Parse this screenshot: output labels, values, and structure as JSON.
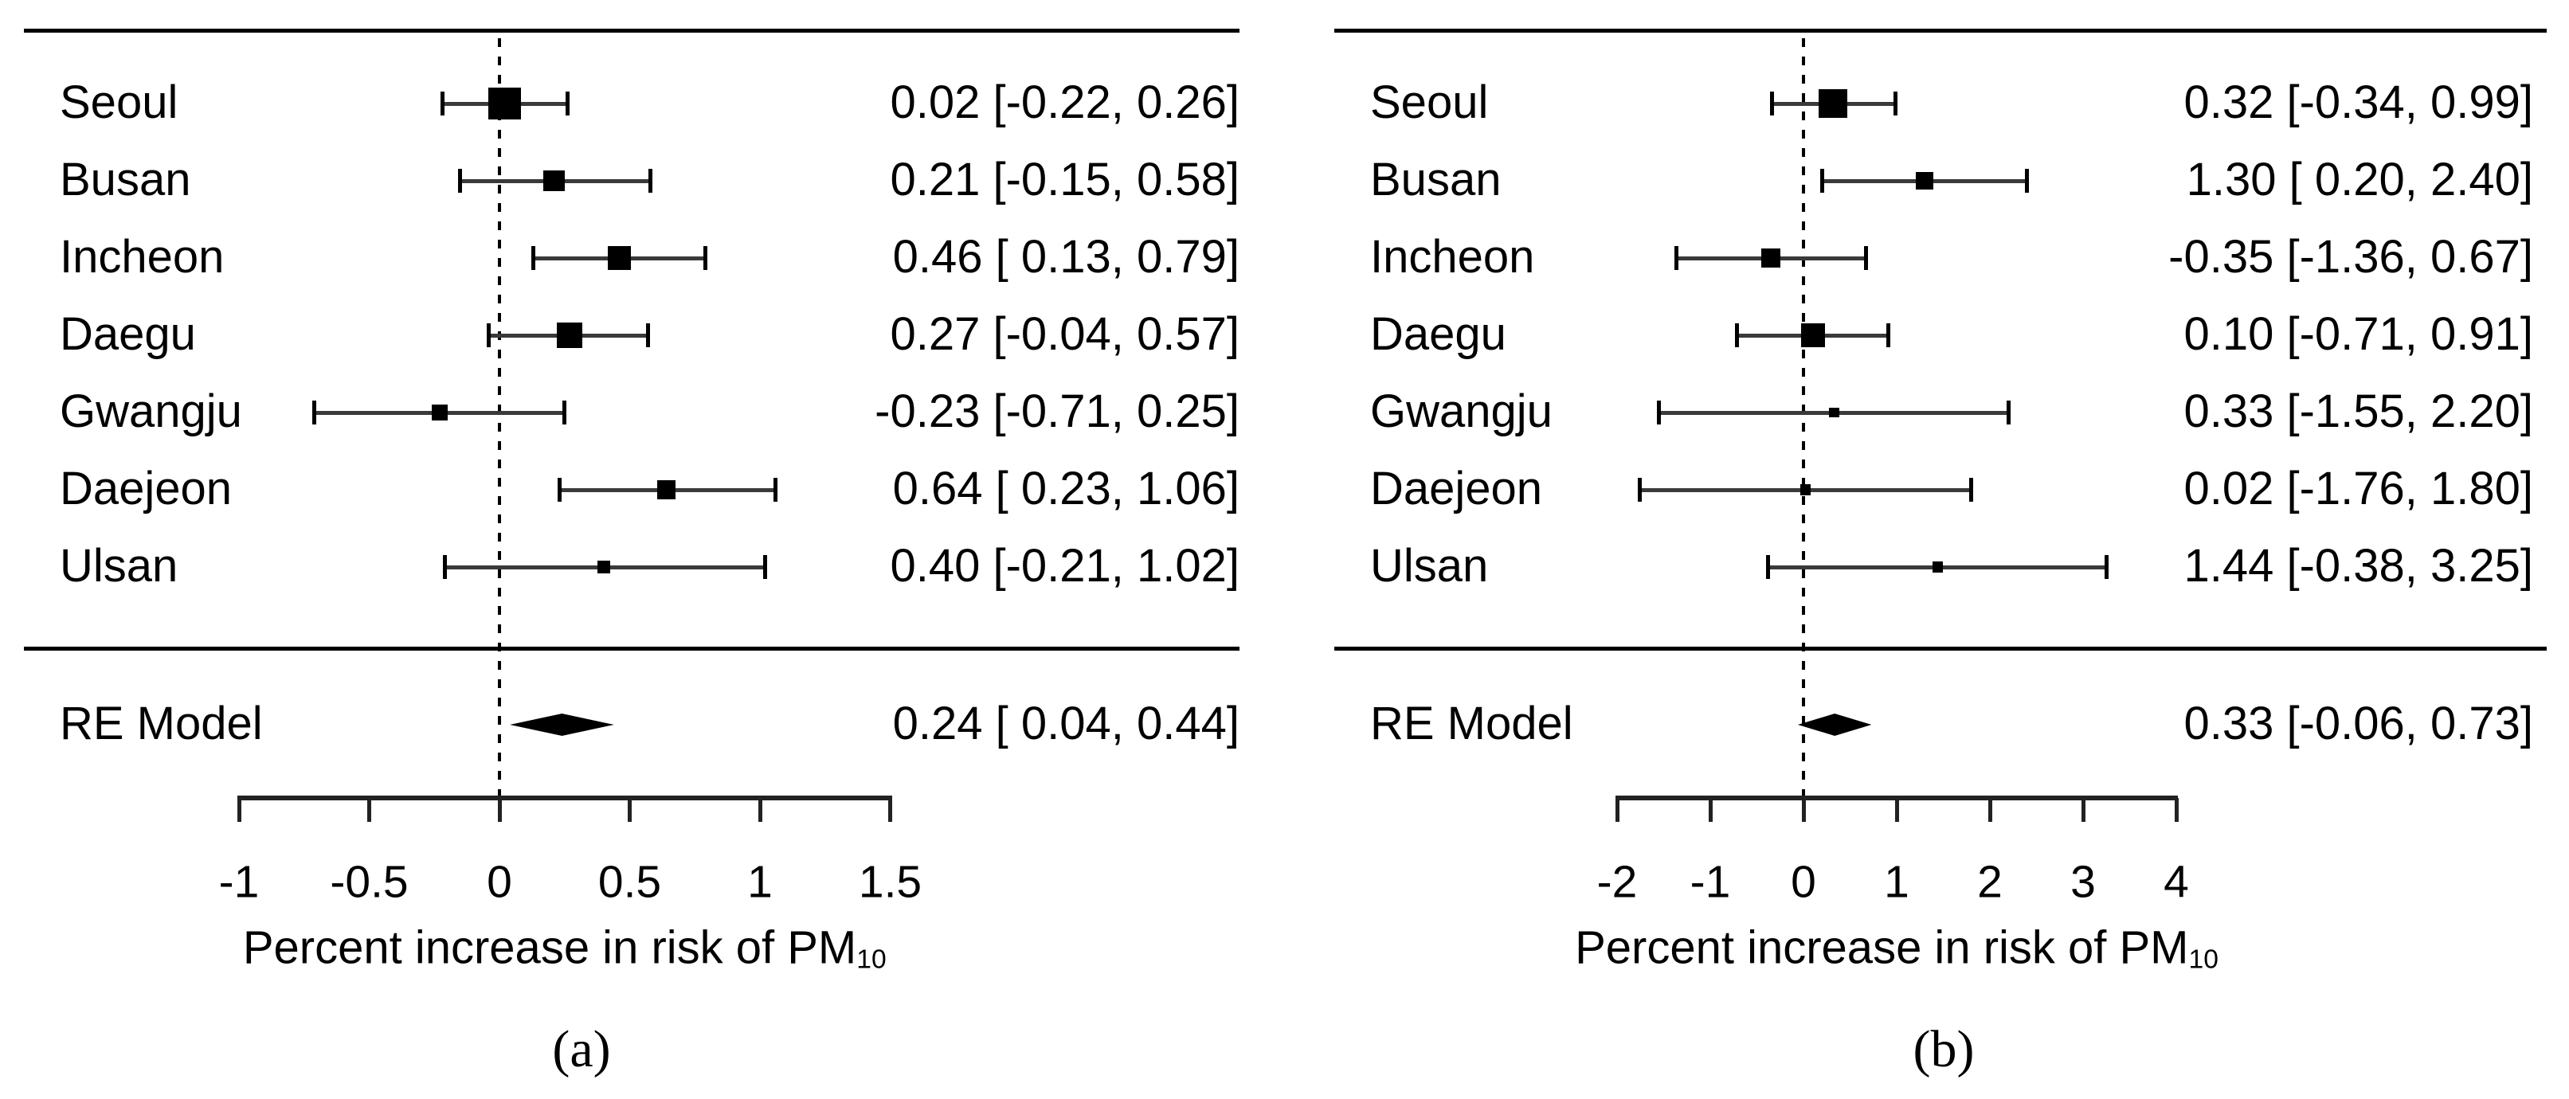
{
  "colors": {
    "foreground": "#000000",
    "background": "#ffffff",
    "whisker": "#3a3a3a"
  },
  "chart_data": [
    {
      "type": "forest",
      "panel_id": "a",
      "caption": "(a)",
      "xlabel": "Percent increase in risk of PM",
      "xlabel_subscript": "10",
      "reference_line": 0,
      "x_axis": {
        "min": -1,
        "max": 1.5,
        "tick_values": [
          -1,
          -0.5,
          0,
          0.5,
          1,
          1.5
        ],
        "tick_labels": [
          "-1",
          "-0.5",
          "0",
          "0.5",
          "1",
          "1.5"
        ]
      },
      "studies": [
        {
          "label": "Seoul",
          "estimate": 0.02,
          "ci_low": -0.22,
          "ci_high": 0.26,
          "display": "0.02 [-0.22, 0.26]"
        },
        {
          "label": "Busan",
          "estimate": 0.21,
          "ci_low": -0.15,
          "ci_high": 0.58,
          "display": "0.21 [-0.15, 0.58]"
        },
        {
          "label": "Incheon",
          "estimate": 0.46,
          "ci_low": 0.13,
          "ci_high": 0.79,
          "display": "0.46 [ 0.13, 0.79]"
        },
        {
          "label": "Daegu",
          "estimate": 0.27,
          "ci_low": -0.04,
          "ci_high": 0.57,
          "display": "0.27 [-0.04, 0.57]"
        },
        {
          "label": "Gwangju",
          "estimate": -0.23,
          "ci_low": -0.71,
          "ci_high": 0.25,
          "display": "-0.23 [-0.71, 0.25]"
        },
        {
          "label": "Daejeon",
          "estimate": 0.64,
          "ci_low": 0.23,
          "ci_high": 1.06,
          "display": "0.64 [ 0.23, 1.06]"
        },
        {
          "label": "Ulsan",
          "estimate": 0.4,
          "ci_low": -0.21,
          "ci_high": 1.02,
          "display": "0.40 [-0.21, 1.02]"
        }
      ],
      "summary": {
        "label": "RE Model",
        "estimate": 0.24,
        "ci_low": 0.04,
        "ci_high": 0.44,
        "display": "0.24 [ 0.04, 0.44]"
      }
    },
    {
      "type": "forest",
      "panel_id": "b",
      "caption": "(b)",
      "xlabel": "Percent increase in risk of PM",
      "xlabel_subscript": "10",
      "reference_line": 0,
      "x_axis": {
        "min": -2,
        "max": 4,
        "tick_values": [
          -2,
          -1,
          0,
          1,
          2,
          3,
          4
        ],
        "tick_labels": [
          "-2",
          "-1",
          "0",
          "1",
          "2",
          "3",
          "4"
        ]
      },
      "studies": [
        {
          "label": "Seoul",
          "estimate": 0.32,
          "ci_low": -0.34,
          "ci_high": 0.99,
          "display": "0.32 [-0.34, 0.99]"
        },
        {
          "label": "Busan",
          "estimate": 1.3,
          "ci_low": 0.2,
          "ci_high": 2.4,
          "display": "1.30 [ 0.20, 2.40]"
        },
        {
          "label": "Incheon",
          "estimate": -0.35,
          "ci_low": -1.36,
          "ci_high": 0.67,
          "display": "-0.35 [-1.36, 0.67]"
        },
        {
          "label": "Daegu",
          "estimate": 0.1,
          "ci_low": -0.71,
          "ci_high": 0.91,
          "display": "0.10 [-0.71, 0.91]"
        },
        {
          "label": "Gwangju",
          "estimate": 0.33,
          "ci_low": -1.55,
          "ci_high": 2.2,
          "display": "0.33 [-1.55, 2.20]"
        },
        {
          "label": "Daejeon",
          "estimate": 0.02,
          "ci_low": -1.76,
          "ci_high": 1.8,
          "display": "0.02 [-1.76, 1.80]"
        },
        {
          "label": "Ulsan",
          "estimate": 1.44,
          "ci_low": -0.38,
          "ci_high": 3.25,
          "display": "1.44 [-0.38, 3.25]"
        }
      ],
      "summary": {
        "label": "RE Model",
        "estimate": 0.33,
        "ci_low": -0.06,
        "ci_high": 0.73,
        "display": "0.33 [-0.06, 0.73]"
      }
    }
  ]
}
